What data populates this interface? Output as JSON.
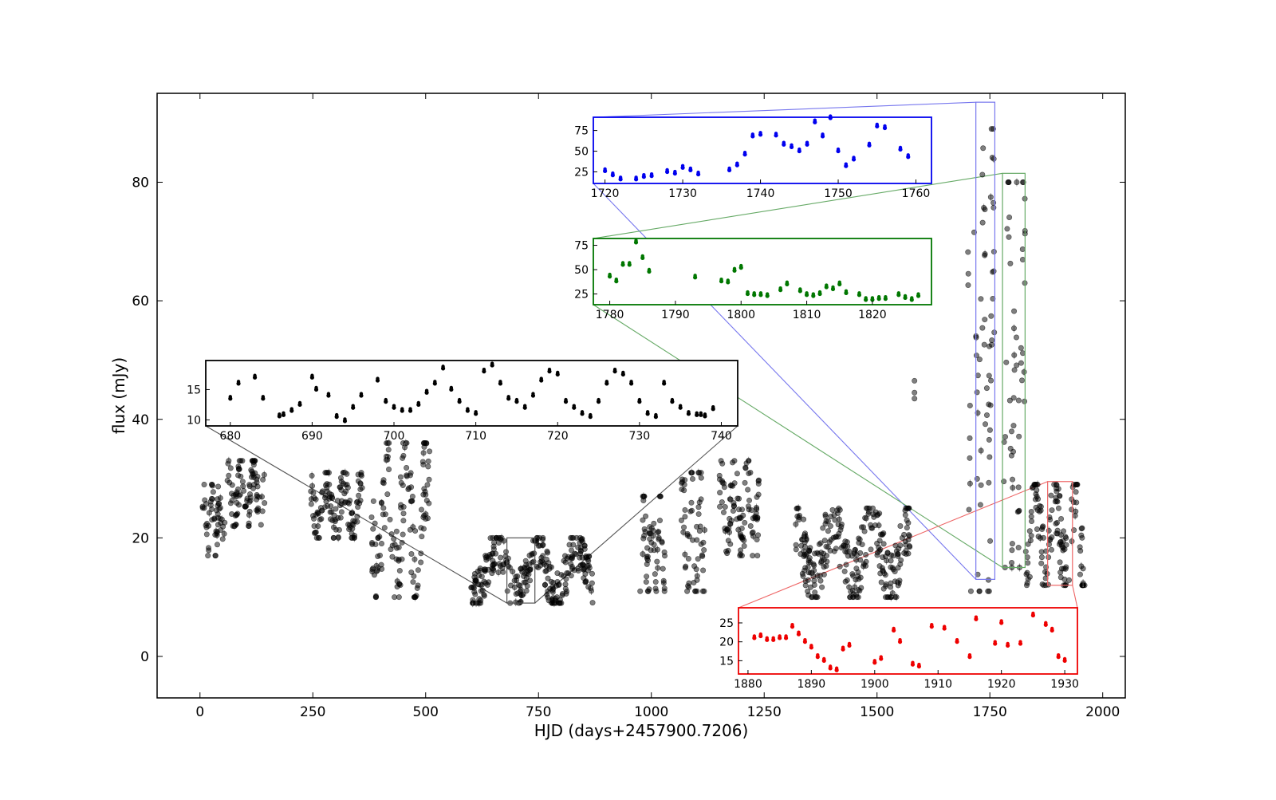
{
  "chart_data": [
    {
      "id": "main",
      "type": "scatter",
      "xlabel": "HJD (days+2457900.7206)",
      "ylabel": "flux (mJy)",
      "xlim": [
        -95,
        2050
      ],
      "ylim": [
        -7,
        95
      ],
      "xticks": [
        0,
        250,
        500,
        750,
        1000,
        1250,
        1500,
        1750,
        2000
      ],
      "yticks": [
        0,
        20,
        40,
        60,
        80
      ],
      "point_color": "#000000",
      "point_opacity": 0.5,
      "segments": [
        {
          "x0": 5,
          "x1": 55,
          "ymin": 17,
          "ymax": 29
        },
        {
          "x0": 60,
          "x1": 145,
          "ymin": 22,
          "ymax": 33
        },
        {
          "x0": 245,
          "x1": 360,
          "ymin": 20,
          "ymax": 31
        },
        {
          "x0": 380,
          "x1": 510,
          "ymin": 10,
          "ymax": 36
        },
        {
          "x0": 600,
          "x1": 870,
          "ymin": 9,
          "ymax": 20
        },
        {
          "x0": 975,
          "x1": 1030,
          "ymin": 11,
          "ymax": 27
        },
        {
          "x0": 1065,
          "x1": 1120,
          "ymin": 11,
          "ymax": 31
        },
        {
          "x0": 1150,
          "x1": 1240,
          "ymin": 17,
          "ymax": 33
        },
        {
          "x0": 1320,
          "x1": 1575,
          "ymin": 10,
          "ymax": 25
        },
        {
          "x0": 1700,
          "x1": 1760,
          "ymin": 11,
          "ymax": 89
        },
        {
          "x0": 1780,
          "x1": 1830,
          "ymin": 15,
          "ymax": 80
        },
        {
          "x0": 1830,
          "x1": 1960,
          "ymin": 12,
          "ymax": 29
        }
      ],
      "outliers": [
        [
          1583,
          46.5
        ],
        [
          1583,
          44.5
        ],
        [
          1583,
          43.5
        ],
        [
          1220,
          22
        ],
        [
          1235,
          17
        ]
      ],
      "zoom_boxes": [
        {
          "inset": "inset_680_740",
          "x": [
            680,
            742
          ],
          "y": [
            9,
            20
          ],
          "color": "#555555"
        },
        {
          "inset": "inset_1720_1760",
          "x": [
            1719,
            1761
          ],
          "y": [
            13,
            93.5
          ],
          "color": "#7777ee"
        },
        {
          "inset": "inset_1780_1828",
          "x": [
            1778,
            1828
          ],
          "y": [
            15,
            81.5
          ],
          "color": "#66aa66"
        },
        {
          "inset": "inset_1880_1932",
          "x": [
            1878,
            1933
          ],
          "y": [
            12,
            29.5
          ],
          "color": "#ee6666"
        }
      ]
    },
    {
      "id": "inset_680_740",
      "type": "scatter",
      "color": "#000000",
      "xlim": [
        677,
        742
      ],
      "ylim": [
        9,
        19.8
      ],
      "xticks": [
        680,
        690,
        700,
        710,
        720,
        730,
        740
      ],
      "yticks": [
        10,
        15
      ],
      "x": [
        680,
        681,
        683,
        684,
        686,
        686.5,
        687.5,
        688.5,
        690,
        690.5,
        692,
        693,
        694,
        695,
        696,
        698,
        699,
        700,
        701,
        702,
        703,
        704,
        705,
        706,
        707,
        708,
        709,
        710,
        711,
        712,
        713,
        714,
        715,
        716,
        717,
        718,
        719,
        720,
        721,
        722,
        723,
        724,
        725,
        726,
        727,
        728,
        729,
        730,
        731,
        732,
        733,
        734,
        735,
        736,
        737,
        737.5,
        738,
        739
      ],
      "y": [
        13.5,
        16,
        17,
        13.5,
        10.6,
        10.8,
        11.5,
        12.5,
        17,
        15,
        14,
        10.5,
        9.8,
        12,
        14,
        16.5,
        13,
        12,
        11.5,
        11.5,
        12.5,
        14.5,
        16,
        18.5,
        15,
        13,
        11.5,
        11,
        18,
        19,
        16,
        13.5,
        13,
        12,
        14,
        16.5,
        18,
        17.5,
        13,
        12,
        11,
        10.5,
        13,
        16,
        18,
        17.5,
        16,
        13,
        11,
        10.5,
        16,
        13,
        12,
        11,
        10.8,
        10.8,
        10.6,
        11.8
      ]
    },
    {
      "id": "inset_1720_1760",
      "type": "scatter",
      "color": "#0000ee",
      "xlim": [
        1718.5,
        1762
      ],
      "ylim": [
        11,
        91
      ],
      "xticks": [
        1720,
        1730,
        1740,
        1750,
        1760
      ],
      "yticks": [
        25,
        50,
        75
      ],
      "x": [
        1720,
        1721,
        1722,
        1724,
        1725,
        1726,
        1728,
        1729,
        1730,
        1731,
        1732,
        1736,
        1737,
        1738,
        1739,
        1740,
        1742,
        1743,
        1744,
        1745,
        1746,
        1747,
        1748,
        1749,
        1750,
        1751,
        1752,
        1754,
        1755,
        1756,
        1758,
        1759
      ],
      "y": [
        26,
        21,
        16,
        16,
        19,
        20,
        25,
        23,
        30,
        27,
        22,
        27,
        33,
        46,
        68,
        70,
        69,
        58,
        55,
        50,
        58,
        85,
        68,
        90,
        50,
        32,
        40,
        57,
        80,
        78,
        52,
        43
      ]
    },
    {
      "id": "inset_1780_1828",
      "type": "scatter",
      "color": "#007700",
      "xlim": [
        1777.5,
        1829
      ],
      "ylim": [
        14,
        82
      ],
      "xticks": [
        1780,
        1790,
        1800,
        1810,
        1820
      ],
      "yticks": [
        25,
        50,
        75
      ],
      "x": [
        1780,
        1781,
        1782,
        1783,
        1784,
        1785,
        1786,
        1793,
        1797,
        1798,
        1799,
        1800,
        1801,
        1802,
        1803,
        1804,
        1806,
        1807,
        1809,
        1810,
        1811,
        1812,
        1813,
        1814,
        1815,
        1816,
        1818,
        1819,
        1820,
        1821,
        1822,
        1824,
        1825,
        1826,
        1827
      ],
      "y": [
        43,
        38,
        55,
        55,
        78,
        62,
        48,
        42,
        38,
        37,
        49,
        52,
        25,
        24,
        24,
        23,
        29,
        35,
        28,
        24,
        23,
        25,
        32,
        30,
        35,
        26,
        24,
        19,
        19,
        20,
        20,
        24,
        21,
        19,
        23
      ]
    },
    {
      "id": "inset_1880_1932",
      "type": "scatter",
      "color": "#ee0000",
      "xlim": [
        1878.5,
        1932
      ],
      "ylim": [
        11.5,
        29
      ],
      "xticks": [
        1880,
        1890,
        1900,
        1910,
        1920,
        1930
      ],
      "yticks": [
        15,
        20,
        25
      ],
      "x": [
        1881,
        1882,
        1883,
        1884,
        1885,
        1886,
        1887,
        1888,
        1889,
        1890,
        1891,
        1892,
        1893,
        1894,
        1895,
        1896,
        1900,
        1901,
        1903,
        1904,
        1906,
        1907,
        1909,
        1911,
        1913,
        1915,
        1916,
        1919,
        1920,
        1921,
        1923,
        1925,
        1927,
        1928,
        1929,
        1930
      ],
      "y": [
        21,
        21.5,
        20.5,
        20.5,
        21,
        21,
        24,
        22,
        20,
        18.5,
        16,
        15,
        13,
        12.5,
        18,
        19,
        14.5,
        15.5,
        23,
        20,
        14,
        13.5,
        24,
        23.5,
        20,
        16,
        26,
        19.5,
        25,
        19,
        19.5,
        27,
        24.5,
        23,
        16,
        15
      ]
    }
  ]
}
